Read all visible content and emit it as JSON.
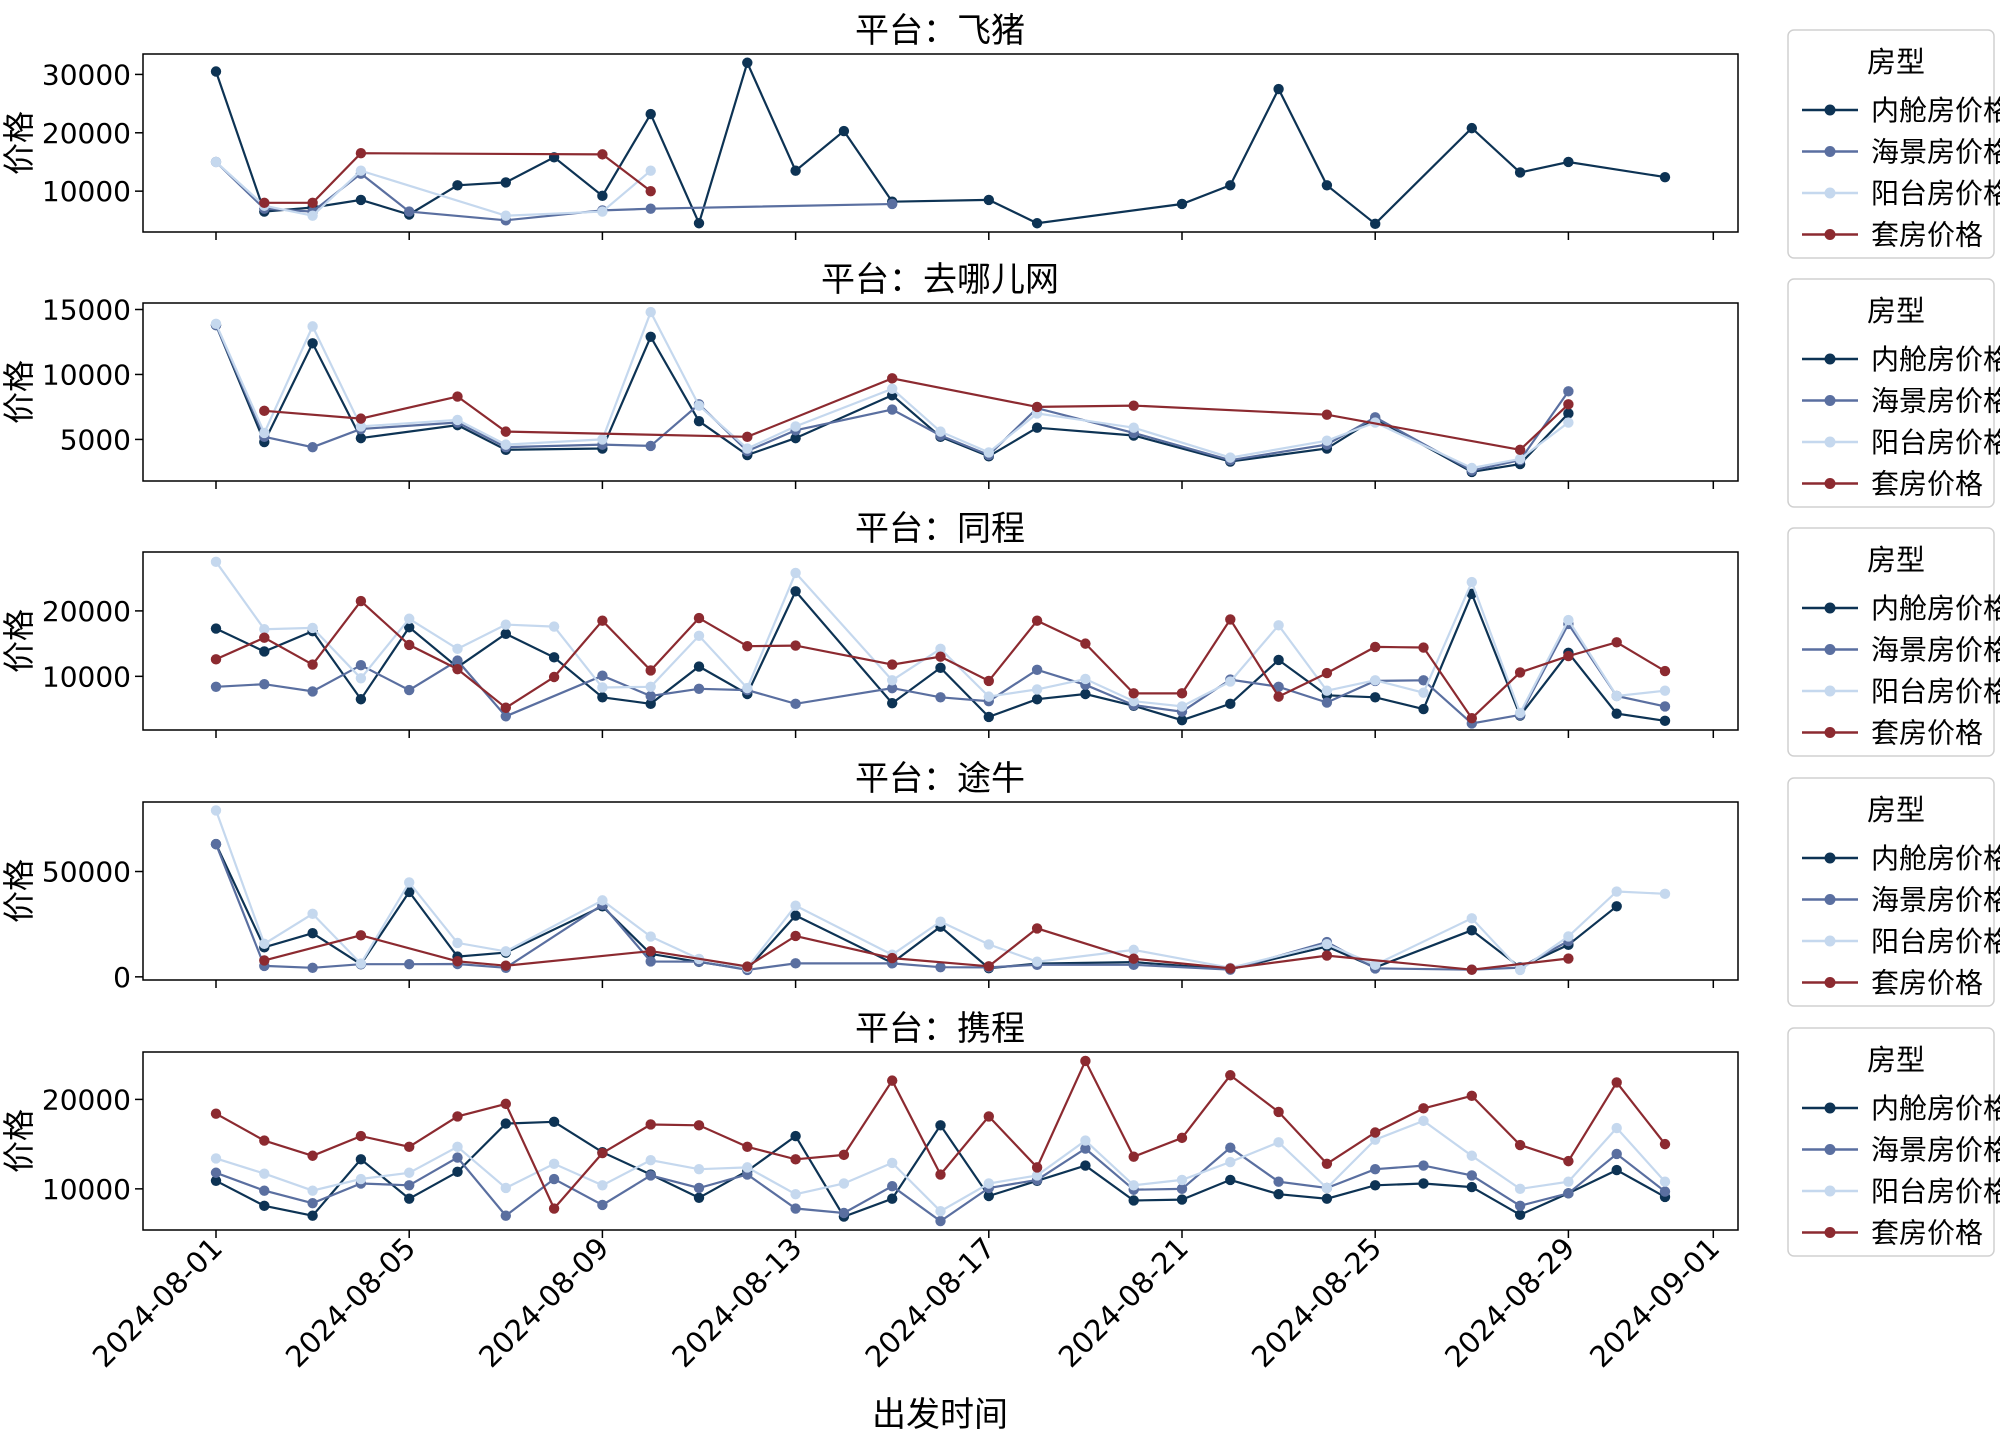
{
  "figure": {
    "xlabel": "出发时间",
    "ylabel": "价格",
    "x_ticks": [
      "2024-08-01",
      "2024-08-05",
      "2024-08-09",
      "2024-08-13",
      "2024-08-17",
      "2024-08-21",
      "2024-08-25",
      "2024-08-29",
      "2024-09-01"
    ],
    "legend_title": "房型",
    "series_names": [
      "内舱房价格",
      "海景房价格",
      "阳台房价格",
      "套房价格"
    ],
    "colors": {
      "内舱房价格": "#0d3354",
      "海景房价格": "#5a6fa0",
      "阳台房价格": "#c5d8ee",
      "套房价格": "#8c2a30"
    }
  },
  "chart_data": [
    {
      "type": "line",
      "title": "平台：飞猪",
      "xlabel": "",
      "ylabel": "价格",
      "ylim": [
        3000,
        33500
      ],
      "yticks": [
        10000,
        20000,
        30000
      ],
      "ytick_labels": [
        "10000",
        "20000",
        "30000"
      ],
      "series": [
        {
          "name": "内舱房价格",
          "x": [
            1,
            2,
            3,
            4,
            5,
            6,
            7,
            8,
            9,
            10,
            11,
            12,
            13,
            14,
            15,
            17,
            18,
            21,
            22,
            23,
            24,
            25,
            27,
            28,
            29,
            31
          ],
          "values": [
            30500,
            6500,
            7200,
            8500,
            6000,
            11000,
            11500,
            15800,
            9200,
            23200,
            4500,
            32000,
            13500,
            20300,
            8200,
            8500,
            4500,
            7800,
            11000,
            27500,
            11000,
            4400,
            20800,
            13200,
            15000,
            12400
          ]
        },
        {
          "name": "海景房价格",
          "x": [
            1,
            2,
            3,
            4,
            5,
            7,
            9,
            10,
            15
          ],
          "values": [
            15000,
            7000,
            6500,
            13000,
            6500,
            5000,
            6700,
            7000,
            7800
          ]
        },
        {
          "name": "阳台房价格",
          "x": [
            1,
            2,
            3,
            4,
            7,
            9,
            10
          ],
          "values": [
            15000,
            7500,
            5800,
            13500,
            5800,
            6500,
            13500
          ]
        },
        {
          "name": "套房价格",
          "x": [
            2,
            3,
            4,
            9,
            10
          ],
          "values": [
            8000,
            8000,
            16500,
            16300,
            10000
          ]
        }
      ]
    },
    {
      "type": "line",
      "title": "平台：去哪儿网",
      "xlabel": "",
      "ylabel": "价格",
      "ylim": [
        1800,
        15500
      ],
      "yticks": [
        5000,
        10000,
        15000
      ],
      "ytick_labels": [
        "5000",
        "10000",
        "15000"
      ],
      "series": [
        {
          "name": "内舱房价格",
          "x": [
            1,
            2,
            3,
            4,
            6,
            7,
            9,
            10,
            11,
            12,
            13,
            15,
            16,
            17,
            18,
            20,
            22,
            24,
            25,
            27,
            28,
            29
          ],
          "values": [
            13800,
            4800,
            12400,
            5100,
            6100,
            4200,
            4300,
            12900,
            6400,
            3800,
            5100,
            8400,
            5200,
            3700,
            5900,
            5300,
            3300,
            4300,
            6600,
            2500,
            3100,
            7000
          ]
        },
        {
          "name": "海景房价格",
          "x": [
            1,
            2,
            3,
            4,
            6,
            7,
            9,
            10,
            11,
            12,
            13,
            15,
            16,
            17,
            18,
            20,
            22,
            24,
            25,
            27,
            28,
            29
          ],
          "values": [
            13800,
            5200,
            4400,
            5800,
            6300,
            4400,
            4600,
            4500,
            7700,
            4100,
            5700,
            7300,
            5300,
            3800,
            7400,
            5500,
            3400,
            4600,
            6700,
            2600,
            3400,
            8700
          ]
        },
        {
          "name": "阳台房价格",
          "x": [
            1,
            2,
            3,
            4,
            6,
            7,
            9,
            10,
            11,
            12,
            13,
            15,
            16,
            17,
            18,
            20,
            22,
            24,
            25,
            27,
            28,
            29
          ],
          "values": [
            13900,
            5500,
            13700,
            6000,
            6500,
            4600,
            5000,
            14800,
            7600,
            4300,
            6000,
            8900,
            5600,
            4000,
            7000,
            5900,
            3600,
            4900,
            6300,
            2800,
            3500,
            6300
          ]
        },
        {
          "name": "套房价格",
          "x": [
            2,
            4,
            6,
            7,
            12,
            15,
            18,
            20,
            24,
            28,
            29
          ],
          "values": [
            7200,
            6600,
            8300,
            5600,
            5200,
            9700,
            7500,
            7600,
            6900,
            4200,
            7700
          ]
        }
      ]
    },
    {
      "type": "line",
      "title": "平台：同程",
      "xlabel": "",
      "ylabel": "价格",
      "ylim": [
        1800,
        29000
      ],
      "yticks": [
        10000,
        20000
      ],
      "ytick_labels": [
        "10000",
        "20000"
      ],
      "series": [
        {
          "name": "内舱房价格",
          "x": [
            1,
            2,
            3,
            4,
            5,
            6,
            7,
            8,
            9,
            10,
            11,
            12,
            13,
            15,
            16,
            17,
            18,
            19,
            20,
            21,
            22,
            23,
            24,
            25,
            26,
            27,
            28,
            29,
            30,
            31
          ],
          "values": [
            17300,
            13800,
            16900,
            6500,
            17500,
            11400,
            16500,
            12900,
            6800,
            5800,
            11500,
            7300,
            23000,
            5900,
            11300,
            3800,
            6500,
            7300,
            5500,
            3300,
            5800,
            12500,
            7100,
            6800,
            5000,
            22600,
            4000,
            13600,
            4300,
            3200
          ]
        },
        {
          "name": "海景房价格",
          "x": [
            1,
            2,
            3,
            4,
            5,
            6,
            7,
            9,
            10,
            11,
            12,
            13,
            15,
            16,
            17,
            18,
            19,
            20,
            21,
            22,
            23,
            24,
            25,
            26,
            27,
            28,
            29,
            30,
            31
          ],
          "values": [
            8400,
            8800,
            7700,
            11700,
            7900,
            12400,
            3900,
            10100,
            7000,
            8100,
            7900,
            5800,
            8200,
            6800,
            6200,
            11000,
            8700,
            5600,
            4600,
            9500,
            8400,
            6000,
            9300,
            9400,
            2800,
            4100,
            18000,
            7000,
            5400
          ]
        },
        {
          "name": "阳台房价格",
          "x": [
            1,
            2,
            3,
            4,
            5,
            6,
            7,
            8,
            9,
            10,
            11,
            12,
            13,
            15,
            16,
            17,
            18,
            19,
            20,
            21,
            22,
            23,
            24,
            25,
            26,
            27,
            28,
            29,
            30,
            31
          ],
          "values": [
            27500,
            17200,
            17400,
            9700,
            18800,
            14200,
            17900,
            17600,
            8300,
            8400,
            16200,
            8200,
            25800,
            9400,
            14200,
            6900,
            8000,
            9600,
            6200,
            5400,
            9200,
            17800,
            7800,
            9400,
            7500,
            24400,
            4400,
            18600,
            7000,
            7800
          ]
        },
        {
          "name": "套房价格",
          "x": [
            1,
            2,
            3,
            4,
            5,
            6,
            7,
            8,
            9,
            10,
            11,
            12,
            13,
            15,
            16,
            17,
            18,
            19,
            20,
            21,
            22,
            23,
            24,
            25,
            26,
            27,
            28,
            29,
            30,
            31
          ],
          "values": [
            12600,
            15900,
            11800,
            21500,
            14800,
            11100,
            5200,
            9900,
            18500,
            10900,
            18900,
            14600,
            14700,
            11800,
            13000,
            9300,
            18500,
            15000,
            7400,
            7400,
            18700,
            6900,
            10500,
            14500,
            14400,
            3600,
            10600,
            13100,
            15200,
            10800
          ]
        }
      ]
    },
    {
      "type": "line",
      "title": "平台：途牛",
      "xlabel": "",
      "ylabel": "价格",
      "ylim": [
        -1500,
        83000
      ],
      "yticks": [
        0,
        50000
      ],
      "ytick_labels": [
        "0",
        "50000"
      ],
      "series": [
        {
          "name": "内舱房价格",
          "x": [
            1,
            2,
            3,
            4,
            5,
            6,
            7,
            9,
            10,
            11,
            12,
            13,
            15,
            16,
            17,
            18,
            20,
            22,
            24,
            25,
            27,
            28,
            29,
            30
          ],
          "values": [
            63000,
            14000,
            20700,
            6000,
            40300,
            9600,
            11500,
            33500,
            10900,
            7100,
            3600,
            29100,
            6600,
            23800,
            4100,
            6300,
            7000,
            3600,
            14400,
            4500,
            22100,
            4500,
            15200,
            33500
          ]
        },
        {
          "name": "海景房价格",
          "x": [
            1,
            2,
            3,
            4,
            5,
            6,
            7,
            9,
            10,
            11,
            12,
            13,
            15,
            16,
            17,
            18,
            20,
            22,
            24,
            25,
            27,
            28,
            29
          ],
          "values": [
            63000,
            5200,
            4300,
            6000,
            6000,
            6100,
            4300,
            34200,
            7300,
            7200,
            3300,
            6400,
            6400,
            4600,
            4500,
            5700,
            5700,
            3400,
            16500,
            4000,
            3400,
            4400,
            17000
          ]
        },
        {
          "name": "阳台房价格",
          "x": [
            1,
            2,
            3,
            4,
            5,
            6,
            7,
            9,
            10,
            11,
            12,
            13,
            15,
            16,
            17,
            18,
            20,
            22,
            24,
            25,
            27,
            28,
            29,
            30,
            31
          ],
          "values": [
            79000,
            15700,
            29900,
            6300,
            44800,
            16100,
            12100,
            36300,
            19100,
            8500,
            4300,
            33800,
            10500,
            26200,
            15400,
            7200,
            12800,
            4300,
            15500,
            5700,
            27800,
            3300,
            19200,
            40500,
            39400
          ]
        },
        {
          "name": "套房价格",
          "x": [
            2,
            4,
            6,
            7,
            10,
            12,
            13,
            15,
            17,
            18,
            20,
            22,
            24,
            27,
            29
          ],
          "values": [
            7800,
            19700,
            7400,
            5300,
            12200,
            4900,
            19400,
            8900,
            5000,
            23000,
            8600,
            4000,
            10100,
            3400,
            8700
          ]
        }
      ]
    },
    {
      "type": "line",
      "title": "平台：携程",
      "xlabel": "出发时间",
      "ylabel": "价格",
      "ylim": [
        5400,
        25300
      ],
      "yticks": [
        10000,
        20000
      ],
      "ytick_labels": [
        "10000",
        "20000"
      ],
      "series": [
        {
          "name": "内舱房价格",
          "x": [
            1,
            2,
            3,
            4,
            5,
            6,
            7,
            8,
            9,
            10,
            11,
            12,
            13,
            14,
            15,
            16,
            17,
            18,
            19,
            20,
            21,
            22,
            23,
            24,
            25,
            26,
            27,
            28,
            29,
            30,
            31
          ],
          "values": [
            10900,
            8100,
            7000,
            13300,
            8900,
            11900,
            17300,
            17500,
            14100,
            11600,
            9000,
            12000,
            15900,
            6900,
            8900,
            17100,
            9200,
            10900,
            12600,
            8700,
            8800,
            11000,
            9400,
            8900,
            10400,
            10600,
            10200,
            7100,
            9500,
            12100,
            9100
          ]
        },
        {
          "name": "海景房价格",
          "x": [
            1,
            2,
            3,
            4,
            5,
            6,
            7,
            8,
            9,
            10,
            11,
            12,
            13,
            14,
            15,
            16,
            17,
            18,
            19,
            20,
            21,
            22,
            23,
            24,
            25,
            26,
            27,
            28,
            29,
            30,
            31
          ],
          "values": [
            11800,
            9800,
            8400,
            10600,
            10400,
            13500,
            7000,
            11100,
            8200,
            11500,
            10100,
            11600,
            7800,
            7300,
            10300,
            6400,
            10100,
            11000,
            14500,
            9900,
            10000,
            14600,
            10800,
            10100,
            12200,
            12600,
            11500,
            8100,
            9500,
            13900,
            9700
          ]
        },
        {
          "name": "阳台房价格",
          "x": [
            1,
            2,
            3,
            4,
            5,
            6,
            7,
            8,
            9,
            10,
            11,
            12,
            13,
            14,
            15,
            16,
            17,
            18,
            19,
            20,
            21,
            22,
            23,
            24,
            25,
            26,
            27,
            28,
            29,
            30,
            31
          ],
          "values": [
            13400,
            11700,
            9800,
            11100,
            11800,
            14700,
            10100,
            12800,
            10400,
            13200,
            12200,
            12400,
            9400,
            10600,
            12900,
            7500,
            10600,
            11500,
            15400,
            10400,
            11000,
            13000,
            15200,
            10100,
            15500,
            17600,
            13700,
            10000,
            10800,
            16800,
            10800
          ]
        },
        {
          "name": "套房价格",
          "x": [
            1,
            2,
            3,
            4,
            5,
            6,
            7,
            8,
            9,
            10,
            11,
            12,
            13,
            14,
            15,
            16,
            17,
            18,
            19,
            20,
            21,
            22,
            23,
            24,
            25,
            26,
            27,
            28,
            29,
            30,
            31
          ],
          "values": [
            18400,
            15400,
            13700,
            15900,
            14700,
            18100,
            19500,
            7800,
            14000,
            17200,
            17100,
            14700,
            13300,
            13800,
            22100,
            11600,
            18100,
            12400,
            24300,
            13600,
            15700,
            22700,
            18600,
            12800,
            16300,
            19000,
            20400,
            14900,
            13100,
            21900,
            15000
          ]
        }
      ]
    }
  ]
}
